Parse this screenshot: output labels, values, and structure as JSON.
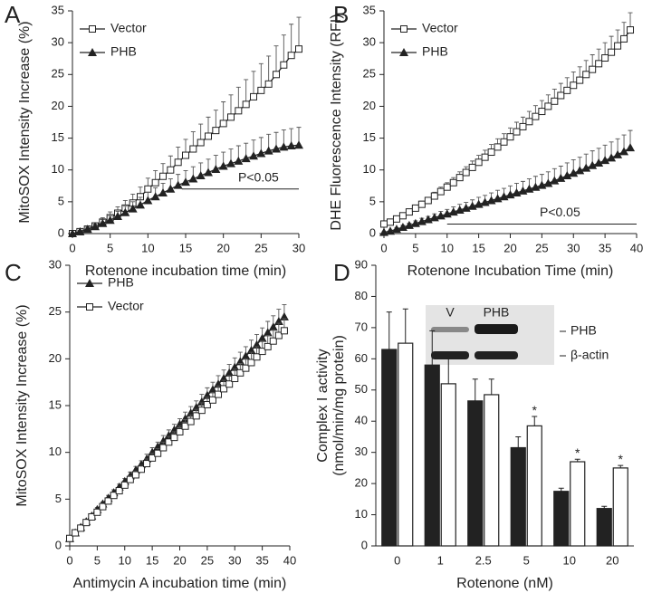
{
  "chart_data": [
    {
      "type": "line",
      "panel_label": "A",
      "x_label": "Rotenone incubation time (min)",
      "y_label": "MitoSOX Intensity Increase (%)",
      "xlim": [
        0,
        30
      ],
      "ylim": [
        0,
        35
      ],
      "xticks": [
        0,
        5,
        10,
        15,
        20,
        25,
        30
      ],
      "yticks": [
        0,
        5,
        10,
        15,
        20,
        25,
        30,
        35
      ],
      "legend": "upper left",
      "x": [
        0,
        1,
        2,
        3,
        4,
        5,
        6,
        7,
        8,
        9,
        10,
        11,
        12,
        13,
        14,
        15,
        16,
        17,
        18,
        19,
        20,
        21,
        22,
        23,
        24,
        25,
        26,
        27,
        28,
        29,
        30
      ],
      "series": [
        {
          "name": "Vector",
          "color": "#222222",
          "marker": "square-open",
          "values": [
            0,
            0.3,
            0.7,
            1.2,
            1.8,
            2.5,
            3.2,
            4,
            4.8,
            5.8,
            7,
            8,
            9,
            10,
            11.2,
            12.3,
            13.3,
            14.3,
            15.3,
            16.2,
            17.3,
            18.3,
            19.3,
            20.3,
            21.5,
            22.5,
            23.5,
            25,
            26.5,
            28,
            29
          ],
          "errors": [
            0,
            0.2,
            0.3,
            0.5,
            0.7,
            0.9,
            1,
            1.2,
            1.4,
            1.5,
            1.7,
            1.9,
            2,
            2.2,
            2.4,
            2.5,
            2.7,
            2.9,
            3,
            3.2,
            3.4,
            3.5,
            3.7,
            3.9,
            4,
            4.2,
            4.4,
            4.5,
            4.7,
            4.9,
            5
          ]
        },
        {
          "name": "PHB",
          "color": "#222222",
          "marker": "triangle",
          "values": [
            0,
            0.3,
            0.7,
            1.1,
            1.6,
            2.1,
            2.7,
            3.3,
            3.9,
            4.5,
            5.2,
            5.8,
            6.4,
            7,
            7.6,
            8.1,
            8.6,
            9.1,
            9.6,
            10.1,
            10.6,
            11,
            11.4,
            11.8,
            12.2,
            12.6,
            13,
            13.3,
            13.6,
            13.8,
            13.9
          ],
          "errors": [
            0,
            0.2,
            0.3,
            0.4,
            0.6,
            0.7,
            0.8,
            1,
            1.1,
            1.2,
            1.3,
            1.4,
            1.5,
            1.6,
            1.7,
            1.8,
            1.9,
            2,
            2.1,
            2.2,
            2.2,
            2.3,
            2.4,
            2.4,
            2.5,
            2.5,
            2.6,
            2.6,
            2.7,
            2.7,
            2.8
          ]
        }
      ],
      "significance_bar": {
        "label": "P<0.05",
        "x": [
          14.5,
          30
        ],
        "y": 7
      }
    },
    {
      "type": "line",
      "panel_label": "B",
      "x_label": "Rotenone Incubation Time (min)",
      "y_label": "DHE Fluorescence Intensity (RFI)",
      "xlim": [
        0,
        40
      ],
      "ylim": [
        0,
        35
      ],
      "xticks": [
        0,
        5,
        10,
        15,
        20,
        25,
        30,
        35,
        40
      ],
      "yticks": [
        0,
        5,
        10,
        15,
        20,
        25,
        30,
        35
      ],
      "legend": "upper left",
      "x": [
        0,
        1,
        2,
        3,
        4,
        5,
        6,
        7,
        8,
        9,
        10,
        11,
        12,
        13,
        14,
        15,
        16,
        17,
        18,
        19,
        20,
        21,
        22,
        23,
        24,
        25,
        26,
        27,
        28,
        29,
        30,
        31,
        32,
        33,
        34,
        35,
        36,
        37,
        38,
        39
      ],
      "series": [
        {
          "name": "Vector",
          "color": "#222222",
          "marker": "square-open",
          "values": [
            1.5,
            1.8,
            2.3,
            2.8,
            3.4,
            4,
            4.6,
            5.2,
            5.9,
            6.6,
            7.3,
            8,
            8.8,
            9.6,
            10.4,
            11.2,
            12,
            12.8,
            13.6,
            14.4,
            15.2,
            16,
            16.8,
            17.6,
            18.4,
            19.2,
            20,
            20.8,
            21.7,
            22.5,
            23.3,
            24.1,
            25,
            25.8,
            26.7,
            27.6,
            28.5,
            29.5,
            30.6,
            32
          ],
          "errors": [
            0.1,
            0.1,
            0.2,
            0.3,
            0.3,
            0.4,
            0.5,
            0.5,
            0.6,
            0.7,
            0.7,
            0.8,
            0.9,
            0.9,
            1,
            1.1,
            1.1,
            1.2,
            1.3,
            1.3,
            1.4,
            1.5,
            1.5,
            1.6,
            1.7,
            1.7,
            1.8,
            1.9,
            1.9,
            2,
            2.1,
            2.1,
            2.2,
            2.3,
            2.3,
            2.4,
            2.5,
            2.5,
            2.6,
            2.7
          ]
        },
        {
          "name": "PHB",
          "color": "#222222",
          "marker": "triangle",
          "values": [
            0.2,
            0.4,
            0.7,
            1,
            1.3,
            1.6,
            1.9,
            2.2,
            2.5,
            2.8,
            3.1,
            3.4,
            3.7,
            4,
            4.3,
            4.6,
            4.9,
            5.2,
            5.5,
            5.8,
            6.1,
            6.4,
            6.7,
            7,
            7.3,
            7.6,
            7.9,
            8.3,
            8.7,
            9.1,
            9.5,
            9.9,
            10.3,
            10.7,
            11.1,
            11.5,
            11.9,
            12.4,
            12.9,
            13.5
          ],
          "errors": [
            0.1,
            0.1,
            0.2,
            0.3,
            0.3,
            0.4,
            0.5,
            0.5,
            0.6,
            0.7,
            0.7,
            0.8,
            0.9,
            0.9,
            1,
            1.1,
            1.1,
            1.2,
            1.3,
            1.3,
            1.4,
            1.5,
            1.5,
            1.6,
            1.7,
            1.7,
            1.8,
            1.9,
            1.9,
            2,
            2.1,
            2.1,
            2.2,
            2.3,
            2.3,
            2.4,
            2.5,
            2.5,
            2.6,
            2.7
          ]
        }
      ],
      "significance_bar": {
        "label": "P<0.05",
        "x": [
          10,
          40
        ],
        "y": 1.5
      }
    },
    {
      "type": "line",
      "panel_label": "C",
      "x_label": "Antimycin A incubation time (min)",
      "y_label": "MitoSOX Intensity Increase (%)",
      "xlim": [
        0,
        40
      ],
      "ylim": [
        0,
        30
      ],
      "xticks": [
        0,
        5,
        10,
        15,
        20,
        25,
        30,
        35,
        40
      ],
      "yticks": [
        0,
        5,
        10,
        15,
        20,
        25,
        30
      ],
      "legend": "upper left",
      "x": [
        0,
        1,
        2,
        3,
        4,
        5,
        6,
        7,
        8,
        9,
        10,
        11,
        12,
        13,
        14,
        15,
        16,
        17,
        18,
        19,
        20,
        21,
        22,
        23,
        24,
        25,
        26,
        27,
        28,
        29,
        30,
        31,
        32,
        33,
        34,
        35,
        36,
        37,
        38,
        39
      ],
      "series": [
        {
          "name": "PHB",
          "color": "#222222",
          "marker": "triangle",
          "values": [
            0.8,
            1.4,
            2,
            2.6,
            3.2,
            3.9,
            4.5,
            5.1,
            5.7,
            6.3,
            6.9,
            7.5,
            8.1,
            8.7,
            9.3,
            10,
            10.6,
            11.2,
            11.8,
            12.4,
            13,
            13.6,
            14.2,
            14.8,
            15.4,
            16.1,
            16.7,
            17.3,
            17.9,
            18.5,
            19.1,
            19.7,
            20.3,
            20.9,
            21.5,
            22.2,
            22.8,
            23.4,
            24,
            24.5
          ],
          "errors": [
            0.1,
            0.1,
            0.1,
            0.2,
            0.2,
            0.2,
            0.2,
            0.3,
            0.3,
            0.3,
            0.3,
            0.4,
            0.4,
            0.4,
            0.5,
            0.5,
            0.5,
            0.6,
            0.6,
            0.6,
            0.6,
            0.7,
            0.7,
            0.7,
            0.8,
            0.8,
            0.8,
            0.9,
            0.9,
            0.9,
            1,
            1,
            1,
            1.1,
            1.1,
            1.1,
            1.2,
            1.2,
            1.3,
            1.3
          ]
        },
        {
          "name": "Vector",
          "color": "#222222",
          "marker": "square-open",
          "values": [
            0.8,
            1.4,
            1.9,
            2.5,
            3.1,
            3.6,
            4.2,
            4.8,
            5.4,
            5.9,
            6.5,
            7.1,
            7.6,
            8.2,
            8.8,
            9.4,
            9.9,
            10.5,
            11.1,
            11.6,
            12.2,
            12.8,
            13.3,
            13.9,
            14.5,
            15.1,
            15.6,
            16.2,
            16.8,
            17.3,
            17.9,
            18.5,
            19,
            19.6,
            20.2,
            20.8,
            21.3,
            21.9,
            22.5,
            23
          ],
          "errors": [
            0.1,
            0.1,
            0.1,
            0.2,
            0.2,
            0.2,
            0.2,
            0.3,
            0.3,
            0.3,
            0.3,
            0.4,
            0.4,
            0.4,
            0.5,
            0.5,
            0.5,
            0.6,
            0.6,
            0.6,
            0.6,
            0.7,
            0.7,
            0.7,
            0.8,
            0.8,
            0.8,
            0.9,
            0.9,
            0.9,
            1,
            1,
            1,
            1.1,
            1.1,
            1.1,
            1.2,
            1.2,
            1.3,
            1.3
          ]
        }
      ]
    },
    {
      "type": "bar",
      "panel_label": "D",
      "x_label": "Rotenone (nM)",
      "y_label": [
        "Complex I activity",
        "(nmol/min/mg protein)"
      ],
      "ylim": [
        0,
        90
      ],
      "yticks": [
        0,
        10,
        20,
        30,
        40,
        50,
        60,
        70,
        80,
        90
      ],
      "categories": [
        "0",
        "1",
        "2.5",
        "5",
        "10",
        "20"
      ],
      "series": [
        {
          "color": "#222222",
          "values": [
            63,
            58,
            46.5,
            31.5,
            17.5,
            12
          ],
          "errors": [
            12,
            11,
            7,
            3.5,
            1,
            0.7
          ]
        },
        {
          "color": "#ffffff",
          "values": [
            65,
            52,
            48.5,
            38.5,
            27,
            25
          ],
          "errors": [
            11,
            8,
            5,
            3,
            0.8,
            0.8
          ]
        }
      ],
      "significance": [
        null,
        null,
        null,
        "*",
        "*",
        "*"
      ],
      "inset": {
        "lane_labels": [
          "V",
          "PHB"
        ],
        "band_labels": [
          "PHB",
          "β-actin"
        ]
      }
    }
  ]
}
